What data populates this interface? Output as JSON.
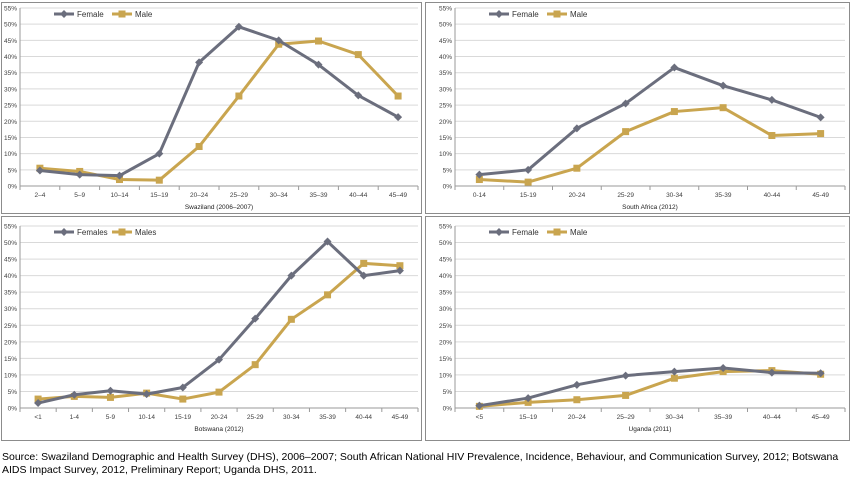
{
  "colors": {
    "female": "#6b6e7d",
    "male": "#c9a54f",
    "grid": "#d9d9d9",
    "frame": "#8c8c8c"
  },
  "source": "Source: Swaziland Demographic and Health Survey (DHS), 2006–2007; South African National HIV Prevalence, Incidence, Behaviour, and Communication Survey, 2012; Botswana AIDS Impact Survey, 2012, Preliminary Report; Uganda DHS, 2011.",
  "chart_data": [
    {
      "type": "line",
      "title": "Swaziland (2006–2007)",
      "xlabel": "Swaziland (2006–2007)",
      "ylabel": "",
      "ylim": [
        0,
        55
      ],
      "y_ticks": [
        "0%",
        "5%",
        "10%",
        "15%",
        "20%",
        "25%",
        "30%",
        "35%",
        "40%",
        "45%",
        "50%",
        "55%"
      ],
      "grid": true,
      "legend_position": "top-left",
      "categories": [
        "2–4",
        "5–9",
        "10–14",
        "15–19",
        "20–24",
        "25–29",
        "30–34",
        "35–39",
        "40–44",
        "45–49"
      ],
      "series": [
        {
          "name": "Female",
          "marker": "diamond",
          "values": [
            4.8,
            3.5,
            3.2,
            10.0,
            38.2,
            49.2,
            45.0,
            37.5,
            28.0,
            21.3
          ]
        },
        {
          "name": "Male",
          "marker": "square",
          "values": [
            5.5,
            4.5,
            2.0,
            1.8,
            12.2,
            27.8,
            43.8,
            44.8,
            40.6,
            27.8
          ]
        }
      ]
    },
    {
      "type": "line",
      "title": "South Africa (2012)",
      "xlabel": "South Africa (2012)",
      "ylabel": "",
      "ylim": [
        0,
        55
      ],
      "y_ticks": [
        "0%",
        "5%",
        "10%",
        "15%",
        "20%",
        "25%",
        "30%",
        "35%",
        "40%",
        "45%",
        "50%",
        "55%"
      ],
      "grid": true,
      "legend_position": "top-left",
      "categories": [
        "0-14",
        "15-19",
        "20-24",
        "25-29",
        "30-34",
        "35-39",
        "40-44",
        "45-49"
      ],
      "series": [
        {
          "name": "Female",
          "marker": "diamond",
          "values": [
            3.5,
            5.0,
            17.8,
            25.5,
            36.6,
            31.0,
            26.6,
            21.2
          ]
        },
        {
          "name": "Male",
          "marker": "square",
          "values": [
            2.0,
            1.2,
            5.5,
            16.8,
            23.0,
            24.2,
            15.6,
            16.2
          ]
        }
      ]
    },
    {
      "type": "line",
      "title": "Botswana (2012)",
      "xlabel": "Botswana (2012)",
      "ylabel": "",
      "ylim": [
        0,
        55
      ],
      "y_ticks": [
        "0%",
        "5%",
        "10%",
        "15%",
        "20%",
        "25%",
        "30%",
        "35%",
        "40%",
        "45%",
        "50%",
        "55%"
      ],
      "grid": true,
      "legend_position": "top-left",
      "categories": [
        "<1",
        "1-4",
        "5-9",
        "10-14",
        "15-19",
        "20-24",
        "25-29",
        "30-34",
        "35-39",
        "40-44",
        "45-49"
      ],
      "series": [
        {
          "name": "Females",
          "marker": "diamond",
          "values": [
            1.5,
            4.0,
            5.2,
            4.2,
            6.2,
            14.6,
            27.0,
            40.0,
            50.3,
            40.0,
            41.5
          ]
        },
        {
          "name": "Males",
          "marker": "square",
          "values": [
            2.7,
            3.5,
            3.2,
            4.5,
            2.7,
            4.8,
            13.1,
            26.8,
            34.2,
            43.7,
            43.0
          ]
        }
      ]
    },
    {
      "type": "line",
      "title": "Uganda (2011)",
      "xlabel": "Uganda (2011)",
      "ylabel": "",
      "ylim": [
        0,
        55
      ],
      "y_ticks": [
        "0%",
        "5%",
        "10%",
        "15%",
        "20%",
        "25%",
        "30%",
        "35%",
        "40%",
        "45%",
        "50%",
        "55%"
      ],
      "grid": true,
      "legend_position": "top-left",
      "categories": [
        "<5",
        "15–19",
        "20–24",
        "25–29",
        "30–34",
        "35–39",
        "40–44",
        "45–49"
      ],
      "series": [
        {
          "name": "Female",
          "marker": "diamond",
          "values": [
            0.7,
            3.0,
            7.0,
            9.8,
            11.0,
            12.1,
            10.7,
            10.5
          ]
        },
        {
          "name": "Male",
          "marker": "square",
          "values": [
            0.5,
            1.7,
            2.5,
            3.8,
            9.0,
            11.0,
            11.3,
            10.2
          ]
        }
      ]
    }
  ]
}
